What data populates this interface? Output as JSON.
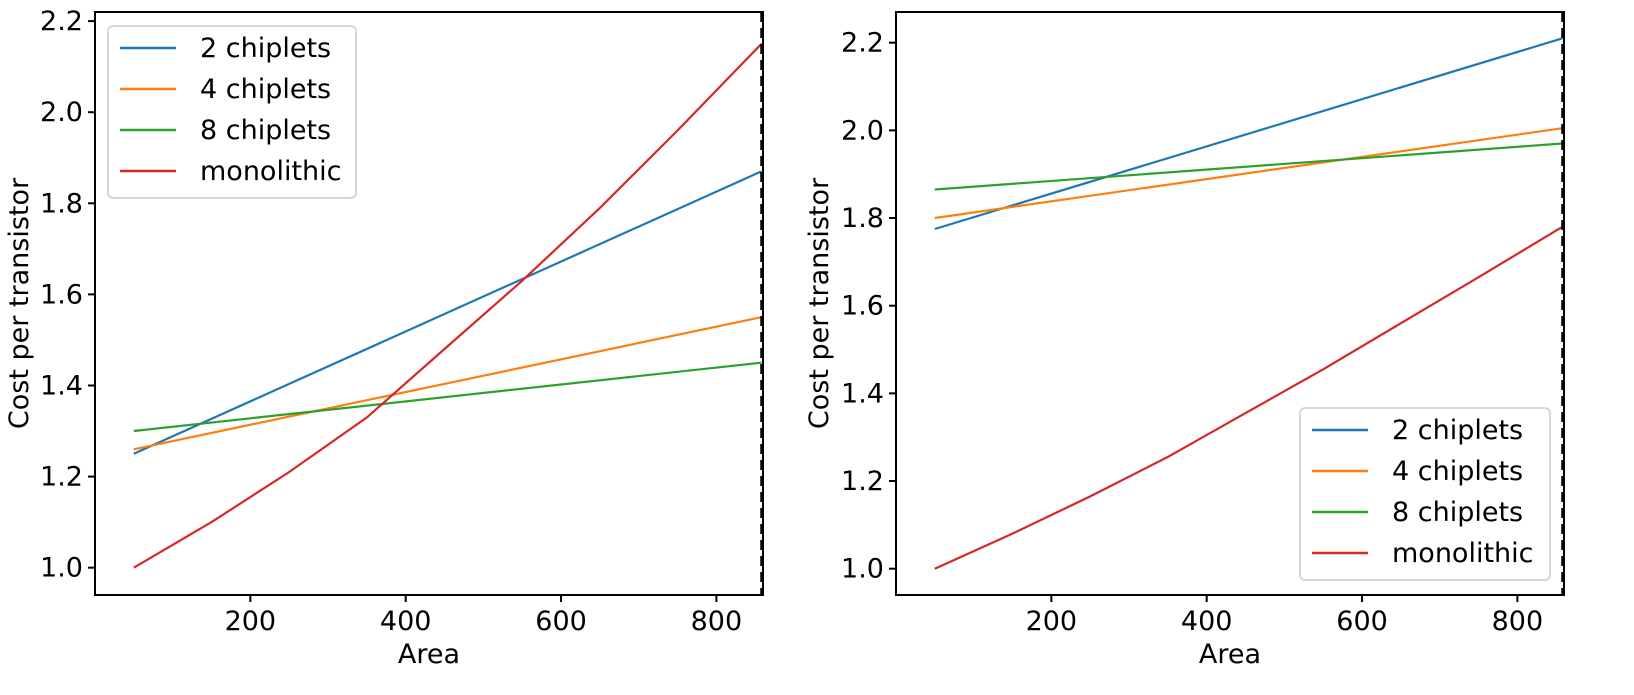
{
  "chart_data": [
    {
      "type": "line",
      "xlabel": "Area",
      "ylabel": "Cost per transistor",
      "xlim": [
        0,
        860
      ],
      "ylim": [
        0.94,
        2.22
      ],
      "xticks": [
        200,
        400,
        600,
        800
      ],
      "yticks": [
        1.0,
        1.2,
        1.4,
        1.6,
        1.8,
        2.0,
        2.2
      ],
      "xtick_labels": [
        "200",
        "400",
        "600",
        "800"
      ],
      "ytick_labels": [
        "1.0",
        "1.2",
        "1.4",
        "1.6",
        "1.8",
        "2.0",
        "2.2"
      ],
      "vline_x": 858,
      "grid": false,
      "legend_position": "top-left",
      "series": [
        {
          "name": "2 chiplets",
          "color": "#1f77b4",
          "x": [
            50,
            858
          ],
          "y": [
            1.25,
            1.87
          ]
        },
        {
          "name": "4 chiplets",
          "color": "#ff7f0e",
          "x": [
            50,
            858
          ],
          "y": [
            1.26,
            1.55
          ]
        },
        {
          "name": "8 chiplets",
          "color": "#2ca02c",
          "x": [
            50,
            858
          ],
          "y": [
            1.3,
            1.45
          ]
        },
        {
          "name": "monolithic",
          "color": "#d62728",
          "x": [
            50,
            150,
            250,
            350,
            450,
            550,
            650,
            750,
            858
          ],
          "y": [
            1.0,
            1.1,
            1.21,
            1.33,
            1.48,
            1.63,
            1.79,
            1.96,
            2.15
          ]
        }
      ]
    },
    {
      "type": "line",
      "xlabel": "Area",
      "ylabel": "Cost per transistor",
      "xlim": [
        0,
        860
      ],
      "ylim": [
        0.94,
        2.27
      ],
      "xticks": [
        200,
        400,
        600,
        800
      ],
      "yticks": [
        1.0,
        1.2,
        1.4,
        1.6,
        1.8,
        2.0,
        2.2
      ],
      "xtick_labels": [
        "200",
        "400",
        "600",
        "800"
      ],
      "ytick_labels": [
        "1.0",
        "1.2",
        "1.4",
        "1.6",
        "1.8",
        "2.0",
        "2.2"
      ],
      "vline_x": 858,
      "grid": false,
      "legend_position": "bottom-right",
      "series": [
        {
          "name": "2 chiplets",
          "color": "#1f77b4",
          "x": [
            50,
            858
          ],
          "y": [
            1.775,
            2.21
          ]
        },
        {
          "name": "4 chiplets",
          "color": "#ff7f0e",
          "x": [
            50,
            858
          ],
          "y": [
            1.8,
            2.005
          ]
        },
        {
          "name": "8 chiplets",
          "color": "#2ca02c",
          "x": [
            50,
            858
          ],
          "y": [
            1.865,
            1.97
          ]
        },
        {
          "name": "monolithic",
          "color": "#d62728",
          "x": [
            50,
            150,
            250,
            350,
            450,
            550,
            650,
            750,
            858
          ],
          "y": [
            1.0,
            1.08,
            1.165,
            1.255,
            1.355,
            1.455,
            1.56,
            1.665,
            1.78
          ]
        }
      ]
    }
  ]
}
